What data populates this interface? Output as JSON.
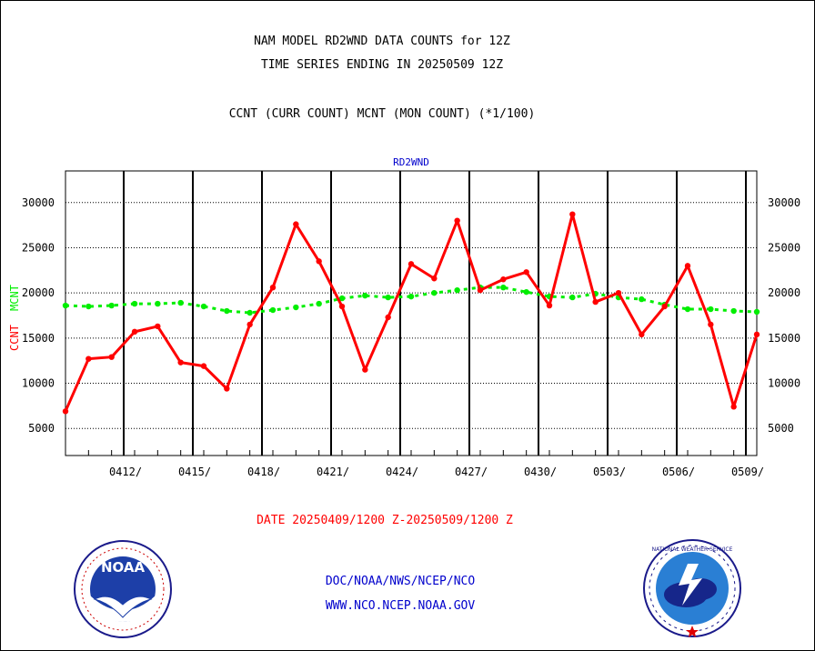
{
  "header": {
    "line1": "NAM MODEL RD2WND DATA COUNTS for 12Z",
    "line2": "TIME SERIES ENDING IN 20250509 12Z",
    "line3": "CCNT (CURR COUNT) MCNT (MON COUNT) (*1/100)"
  },
  "footer": {
    "date_range": "DATE 20250409/1200 Z-20250509/1200 Z",
    "org": "DOC/NOAA/NWS/NCEP/NCO",
    "url": "WWW.NCO.NCEP.NOAA.GOV"
  },
  "logos": {
    "noaa_text": "NOAA",
    "nws_text": "NATIONAL WEATHER SERVICE"
  },
  "colors": {
    "ccnt": "#ff0000",
    "mcnt": "#00ee00",
    "panel_label": "#0000cc"
  },
  "chart_data": {
    "type": "line",
    "title": "RD2WND",
    "ylabel_left": [
      "CCNT",
      "MCNT"
    ],
    "ylim": [
      2000,
      33500
    ],
    "yticks": [
      5000,
      10000,
      15000,
      20000,
      25000,
      30000
    ],
    "ytick_labels": [
      "5000",
      "10000",
      "15000",
      "20000",
      "25000",
      "30000"
    ],
    "xlim": [
      0,
      30
    ],
    "xtick_labels": [
      "0412/",
      "0415/",
      "0418/",
      "0421/",
      "0424/",
      "0427/",
      "0430/",
      "0503/",
      "0506/",
      "0509/"
    ],
    "xtick_positions": [
      3,
      6,
      9,
      12,
      15,
      18,
      21,
      24,
      27,
      30
    ],
    "grid": true,
    "series": [
      {
        "name": "CCNT",
        "color": "#ff0000",
        "x": [
          0,
          1,
          2,
          3,
          4,
          5,
          6,
          7,
          8,
          9,
          10,
          11,
          12,
          13,
          14,
          15,
          16,
          17,
          18,
          19,
          20,
          21,
          22,
          23,
          24,
          25,
          26,
          27,
          28,
          29,
          30
        ],
        "values": [
          6900,
          12700,
          12900,
          15700,
          16300,
          12300,
          11900,
          9400,
          16500,
          20600,
          27600,
          23500,
          18500,
          11500,
          17300,
          23200,
          21600,
          28000,
          20300,
          21500,
          22300,
          18600,
          28700,
          19000,
          20000,
          15400,
          18500,
          23000,
          16500,
          7400,
          15400
        ]
      },
      {
        "name": "MCNT",
        "color": "#00ee00",
        "x": [
          0,
          1,
          2,
          3,
          4,
          5,
          6,
          7,
          8,
          9,
          10,
          11,
          12,
          13,
          14,
          15,
          16,
          17,
          18,
          19,
          20,
          21,
          22,
          23,
          24,
          25,
          26,
          27,
          28,
          29,
          30
        ],
        "values": [
          18600,
          18500,
          18600,
          18800,
          18800,
          18900,
          18500,
          18000,
          17800,
          18100,
          18400,
          18800,
          19400,
          19700,
          19500,
          19600,
          20000,
          20300,
          20600,
          20600,
          20100,
          19600,
          19500,
          19900,
          19500,
          19300,
          18700,
          18200,
          18200,
          18000,
          17900
        ]
      }
    ]
  }
}
